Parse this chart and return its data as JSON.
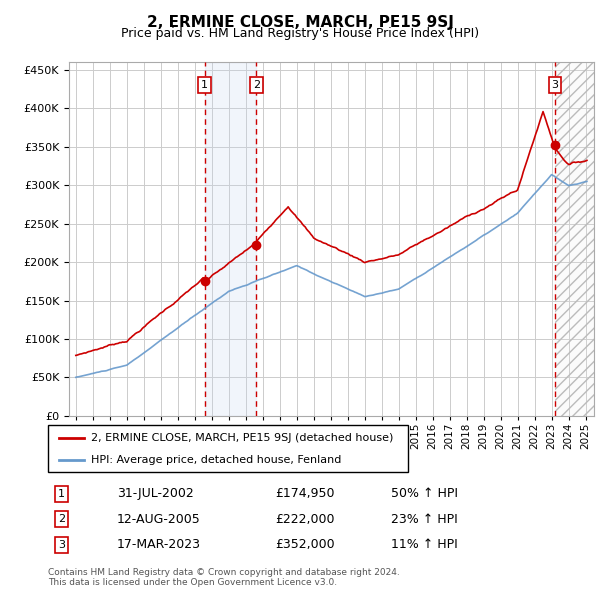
{
  "title": "2, ERMINE CLOSE, MARCH, PE15 9SJ",
  "subtitle": "Price paid vs. HM Land Registry's House Price Index (HPI)",
  "property_label": "2, ERMINE CLOSE, MARCH, PE15 9SJ (detached house)",
  "hpi_label": "HPI: Average price, detached house, Fenland",
  "footer1": "Contains HM Land Registry data © Crown copyright and database right 2024.",
  "footer2": "This data is licensed under the Open Government Licence v3.0.",
  "sales": [
    {
      "num": 1,
      "date": "31-JUL-2002",
      "price": 174950,
      "pct": "50%",
      "dir": "↑"
    },
    {
      "num": 2,
      "date": "12-AUG-2005",
      "price": 222000,
      "pct": "23%",
      "dir": "↑"
    },
    {
      "num": 3,
      "date": "17-MAR-2023",
      "price": 352000,
      "pct": "11%",
      "dir": "↑"
    }
  ],
  "sale_years": [
    2002.58,
    2005.62,
    2023.21
  ],
  "sale_prices": [
    174950,
    222000,
    352000
  ],
  "ylim": [
    0,
    460000
  ],
  "xlim_start": 1994.6,
  "xlim_end": 2025.5,
  "background_color": "#ffffff",
  "grid_color": "#cccccc",
  "hpi_color": "#6699cc",
  "property_color": "#cc0000",
  "vline_color": "#cc0000",
  "shade_color": "#ddeeff",
  "hatch_color": "#cccccc"
}
